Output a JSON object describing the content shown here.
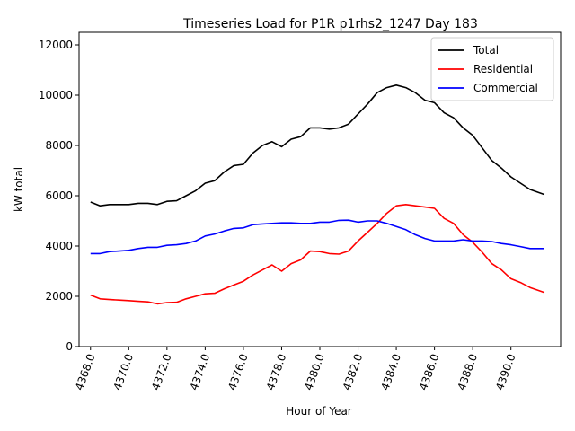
{
  "chart_data": {
    "type": "line",
    "title": "Timeseries Load for P1R p1rhs2_1247  Day 183",
    "xlabel": "Hour of Year",
    "ylabel": "kW total",
    "xlim": [
      4367.4,
      4392.6
    ],
    "ylim": [
      0,
      12500
    ],
    "xticks": [
      4368,
      4370,
      4372,
      4374,
      4376,
      4378,
      4380,
      4382,
      4384,
      4386,
      4388,
      4390
    ],
    "xtick_labels": [
      "4368.0",
      "4370.0",
      "4372.0",
      "4374.0",
      "4376.0",
      "4378.0",
      "4380.0",
      "4382.0",
      "4384.0",
      "4386.0",
      "4388.0",
      "4390.0"
    ],
    "yticks": [
      0,
      2000,
      4000,
      6000,
      8000,
      10000,
      12000
    ],
    "ytick_labels": [
      "0",
      "2000",
      "4000",
      "6000",
      "8000",
      "10000",
      "12000"
    ],
    "legend_position": "top-right",
    "x": [
      4368.0,
      4368.5,
      4369.0,
      4369.5,
      4370.0,
      4370.5,
      4371.0,
      4371.5,
      4372.0,
      4372.5,
      4373.0,
      4373.5,
      4374.0,
      4374.5,
      4375.0,
      4375.5,
      4376.0,
      4376.5,
      4377.0,
      4377.5,
      4378.0,
      4378.5,
      4379.0,
      4379.5,
      4380.0,
      4380.5,
      4381.0,
      4381.5,
      4382.0,
      4382.5,
      4383.0,
      4383.5,
      4384.0,
      4384.5,
      4385.0,
      4385.5,
      4386.0,
      4386.5,
      4387.0,
      4387.5,
      4388.0,
      4388.5,
      4389.0,
      4389.5,
      4390.0,
      4390.5,
      4391.0,
      4391.75
    ],
    "series": [
      {
        "name": "Total",
        "color": "#000000",
        "values": [
          5750,
          5600,
          5650,
          5650,
          5650,
          5700,
          5700,
          5650,
          5780,
          5800,
          6000,
          6200,
          6500,
          6600,
          6950,
          7200,
          7250,
          7700,
          8000,
          8150,
          7950,
          8250,
          8350,
          8700,
          8700,
          8650,
          8700,
          8850,
          9250,
          9650,
          10100,
          10300,
          10400,
          10300,
          10100,
          9800,
          9700,
          9300,
          9100,
          8700,
          8400,
          7900,
          7400,
          7100,
          6750,
          6500,
          6250,
          6050
        ]
      },
      {
        "name": "Residential",
        "color": "#ff0000",
        "values": [
          2050,
          1900,
          1870,
          1850,
          1830,
          1800,
          1780,
          1700,
          1750,
          1760,
          1900,
          2000,
          2100,
          2120,
          2300,
          2450,
          2600,
          2850,
          3050,
          3250,
          3000,
          3300,
          3450,
          3800,
          3780,
          3700,
          3680,
          3800,
          4200,
          4550,
          4900,
          5300,
          5600,
          5650,
          5600,
          5550,
          5500,
          5100,
          4900,
          4450,
          4150,
          3750,
          3300,
          3050,
          2700,
          2550,
          2350,
          2150
        ]
      },
      {
        "name": "Commercial",
        "color": "#0000ff",
        "values": [
          3700,
          3700,
          3780,
          3800,
          3830,
          3900,
          3950,
          3950,
          4030,
          4050,
          4100,
          4200,
          4400,
          4480,
          4600,
          4700,
          4720,
          4850,
          4880,
          4900,
          4920,
          4920,
          4900,
          4900,
          4950,
          4950,
          5020,
          5030,
          4950,
          5000,
          5000,
          4900,
          4780,
          4650,
          4450,
          4300,
          4200,
          4200,
          4200,
          4250,
          4200,
          4200,
          4180,
          4100,
          4050,
          3980,
          3900,
          3900
        ]
      }
    ]
  }
}
